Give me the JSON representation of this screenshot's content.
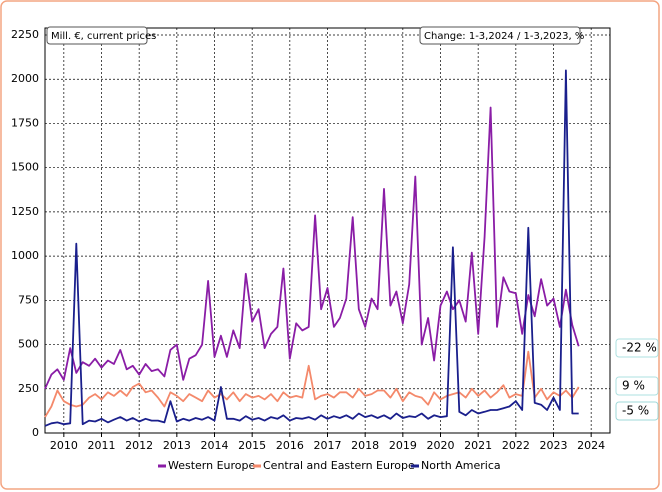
{
  "chart_data": {
    "type": "line",
    "annotations": [
      "Mill. €, current prices",
      "Change: 1-3,2024 / 1-3,2023, %"
    ],
    "x": [
      2010,
      2010.17,
      2010.33,
      2010.5,
      2010.67,
      2010.83,
      2011,
      2011.17,
      2011.33,
      2011.5,
      2011.67,
      2011.83,
      2012,
      2012.17,
      2012.33,
      2012.5,
      2012.67,
      2012.83,
      2013,
      2013.17,
      2013.33,
      2013.5,
      2013.67,
      2013.83,
      2014,
      2014.17,
      2014.33,
      2014.5,
      2014.67,
      2014.83,
      2015,
      2015.17,
      2015.33,
      2015.5,
      2015.67,
      2015.83,
      2016,
      2016.17,
      2016.33,
      2016.5,
      2016.67,
      2016.83,
      2017,
      2017.17,
      2017.33,
      2017.5,
      2017.67,
      2017.83,
      2018,
      2018.17,
      2018.33,
      2018.5,
      2018.67,
      2018.83,
      2019,
      2019.17,
      2019.33,
      2019.5,
      2019.67,
      2019.83,
      2020,
      2020.17,
      2020.33,
      2020.5,
      2020.67,
      2020.83,
      2021,
      2021.17,
      2021.33,
      2021.5,
      2021.67,
      2021.83,
      2022,
      2022.17,
      2022.33,
      2022.5,
      2022.67,
      2022.83,
      2023,
      2023.17,
      2023.33,
      2023.5,
      2023.67,
      2023.83,
      2024,
      2024.17
    ],
    "series": [
      {
        "name": "Western Europe",
        "color": "#8a1da6",
        "change_label": "-22 %",
        "values": [
          250,
          330,
          360,
          300,
          480,
          340,
          400,
          380,
          420,
          370,
          410,
          390,
          470,
          360,
          380,
          330,
          390,
          350,
          360,
          320,
          470,
          500,
          300,
          420,
          440,
          500,
          860,
          430,
          550,
          430,
          580,
          480,
          900,
          630,
          700,
          480,
          560,
          600,
          930,
          420,
          620,
          580,
          600,
          1230,
          700,
          820,
          600,
          650,
          760,
          1220,
          700,
          600,
          760,
          700,
          1380,
          720,
          800,
          620,
          840,
          1450,
          500,
          650,
          410,
          720,
          800,
          700,
          750,
          630,
          1020,
          560,
          1110,
          1840,
          600,
          880,
          800,
          790,
          560,
          780,
          660,
          870,
          720,
          760,
          600,
          810,
          610,
          490
        ]
      },
      {
        "name": "Central and Eastern Europe",
        "color": "#f4896b",
        "change_label": "9 %",
        "values": [
          90,
          150,
          240,
          180,
          160,
          150,
          160,
          200,
          220,
          190,
          230,
          210,
          240,
          210,
          260,
          280,
          230,
          240,
          200,
          150,
          230,
          210,
          180,
          220,
          200,
          180,
          240,
          200,
          220,
          190,
          230,
          180,
          220,
          200,
          210,
          190,
          220,
          180,
          230,
          200,
          210,
          200,
          380,
          190,
          210,
          220,
          200,
          230,
          230,
          200,
          250,
          210,
          220,
          240,
          240,
          200,
          250,
          180,
          230,
          210,
          200,
          160,
          230,
          190,
          210,
          220,
          230,
          200,
          250,
          210,
          240,
          200,
          230,
          270,
          200,
          220,
          210,
          460,
          200,
          250,
          190,
          230,
          210,
          240,
          200,
          260
        ]
      },
      {
        "name": "North America",
        "color": "#1a1f8c",
        "change_label": "-5 %",
        "values": [
          40,
          55,
          60,
          50,
          55,
          1070,
          50,
          70,
          65,
          80,
          60,
          75,
          90,
          70,
          85,
          65,
          80,
          70,
          70,
          60,
          180,
          65,
          80,
          70,
          85,
          75,
          90,
          70,
          260,
          80,
          80,
          70,
          95,
          75,
          85,
          70,
          90,
          80,
          100,
          70,
          85,
          80,
          90,
          75,
          100,
          80,
          95,
          85,
          100,
          80,
          110,
          90,
          100,
          85,
          100,
          80,
          110,
          85,
          95,
          90,
          110,
          80,
          100,
          90,
          95,
          1050,
          120,
          100,
          130,
          110,
          120,
          130,
          130,
          140,
          150,
          180,
          130,
          1160,
          170,
          160,
          130,
          200,
          130,
          2050,
          110,
          110
        ]
      }
    ],
    "xlim": [
      2010,
      2025
    ],
    "xticks": [
      {
        "value": 2010.5,
        "label": "2010"
      },
      {
        "value": 2011.5,
        "label": "2011"
      },
      {
        "value": 2012.5,
        "label": "2012"
      },
      {
        "value": 2013.5,
        "label": "2013"
      },
      {
        "value": 2014.5,
        "label": "2014"
      },
      {
        "value": 2015.5,
        "label": "2015"
      },
      {
        "value": 2016.5,
        "label": "2016"
      },
      {
        "value": 2017.5,
        "label": "2017"
      },
      {
        "value": 2018.5,
        "label": "2018"
      },
      {
        "value": 2019.5,
        "label": "2019"
      },
      {
        "value": 2020.5,
        "label": "2020"
      },
      {
        "value": 2021.5,
        "label": "2021"
      },
      {
        "value": 2022.5,
        "label": "2022"
      },
      {
        "value": 2023.5,
        "label": "2023"
      },
      {
        "value": 2024.5,
        "label": "2024"
      }
    ],
    "ylim": [
      0,
      2250
    ],
    "yticks": [
      0,
      250,
      500,
      750,
      1000,
      1250,
      1500,
      1750,
      2000,
      2250
    ],
    "grid": true
  }
}
